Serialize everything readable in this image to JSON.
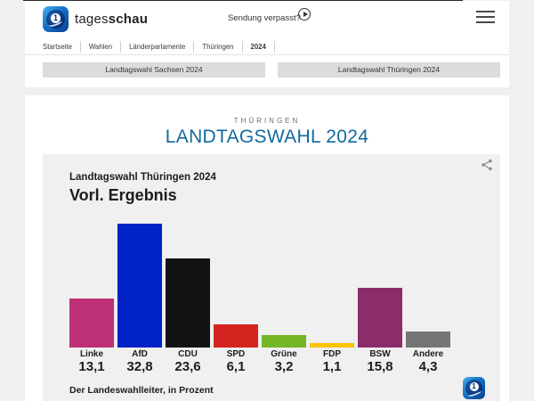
{
  "header": {
    "brand_regular": "tages",
    "brand_bold": "schau",
    "sendung_link": "Sendung verpasst?"
  },
  "breadcrumb": {
    "items": [
      "Startseite",
      "Wahlen",
      "Länderparlamente",
      "Thüringen",
      "2024"
    ]
  },
  "nav_buttons": {
    "left": "Landtagswahl Sachsen 2024",
    "right": "Landtagswahl Thüringen 2024"
  },
  "page_title": {
    "kicker": "THÜRINGEN",
    "headline": "LANDTAGSWAHL 2024",
    "headline_color": "#116a9f"
  },
  "chart_data": {
    "type": "bar",
    "title": "Landtagswahl Thüringen 2024",
    "subtitle": "Vorl. Ergebnis",
    "categories": [
      "Linke",
      "AfD",
      "CDU",
      "SPD",
      "Grüne",
      "FDP",
      "BSW",
      "Andere"
    ],
    "values": [
      13.1,
      32.8,
      23.6,
      6.1,
      3.2,
      1.1,
      15.8,
      4.3
    ],
    "value_labels": [
      "13,1",
      "32,8",
      "23,6",
      "6,1",
      "3,2",
      "1,1",
      "15,8",
      "4,3"
    ],
    "colors": [
      "#bd3075",
      "#0023c8",
      "#131313",
      "#d4241f",
      "#73b626",
      "#fcc300",
      "#8b2d6b",
      "#757575"
    ],
    "ylim": [
      0,
      35
    ],
    "unit": "Prozent",
    "source": "Der Landeswahlleiter, in Prozent",
    "legend_position": "none",
    "grid": false
  }
}
